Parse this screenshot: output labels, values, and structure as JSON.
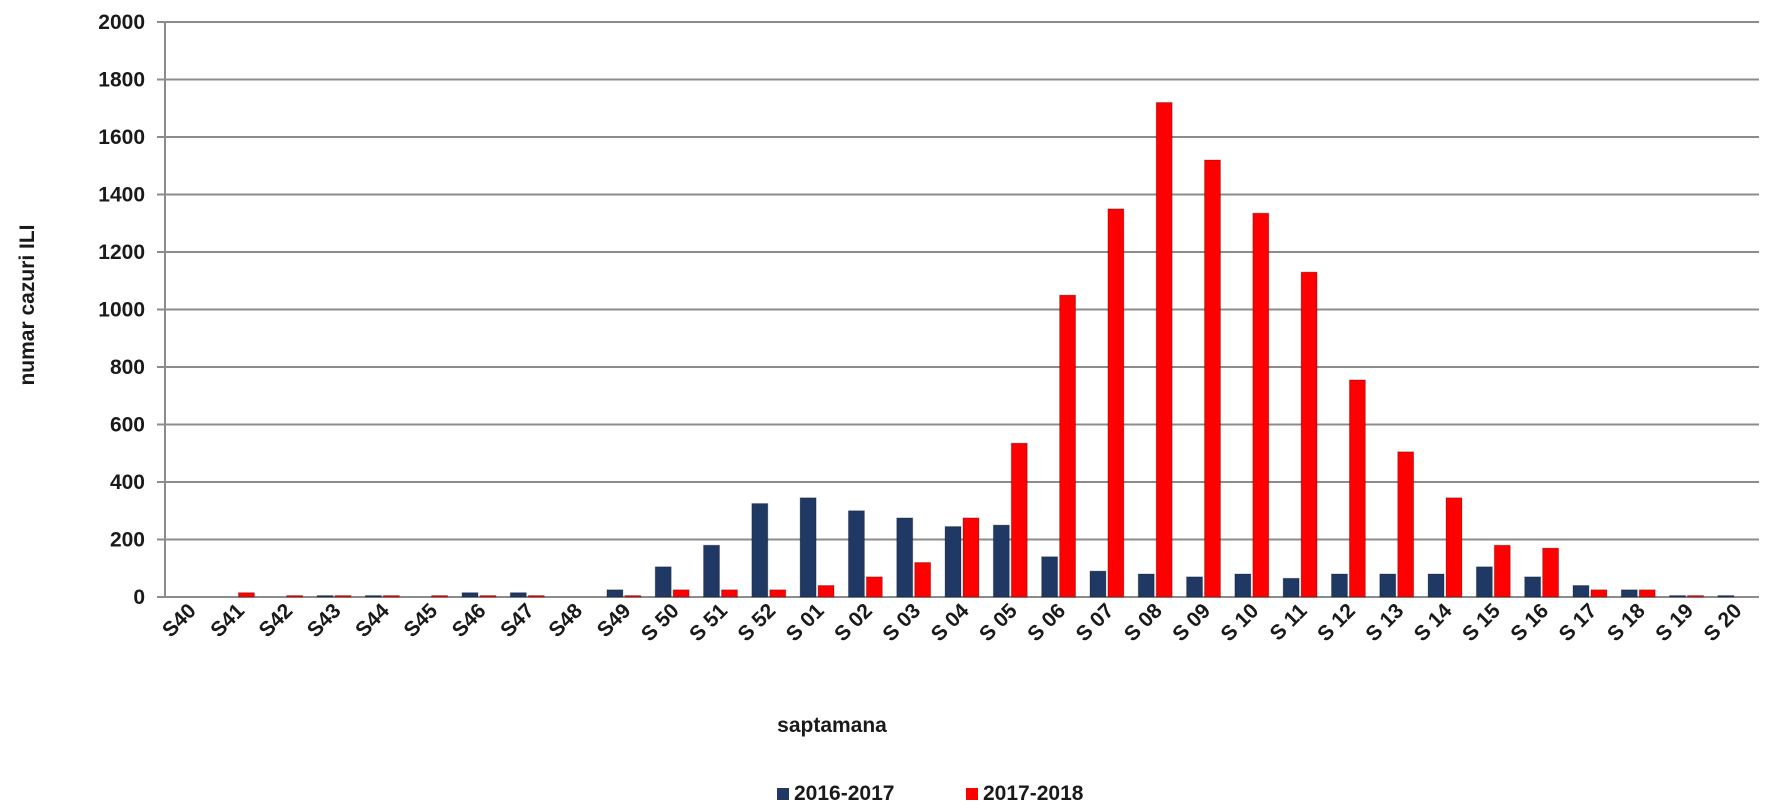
{
  "chart_data": {
    "type": "bar",
    "title": "",
    "xlabel": "saptamana",
    "ylabel": "numar cazuri ILI",
    "ylim": [
      0,
      2000
    ],
    "yticks": [
      0,
      200,
      400,
      600,
      800,
      1000,
      1200,
      1400,
      1600,
      1800,
      2000
    ],
    "grid": true,
    "legend_position": "bottom",
    "categories": [
      "S40",
      "S41",
      "S42",
      "S43",
      "S44",
      "S45",
      "S46",
      "S47",
      "S48",
      "S49",
      "S50",
      "S51",
      "S52",
      "S01",
      "S02",
      "S03",
      "S04",
      "S05",
      "S06",
      "S07",
      "S08",
      "S09",
      "S10",
      "S11",
      "S12",
      "S13",
      "S14",
      "S15",
      "S16",
      "S17",
      "S18",
      "S19",
      "S20"
    ],
    "category_labels": [
      "S40",
      "S41",
      "S42",
      "S43",
      "S44",
      "S45",
      "S46",
      "S47",
      "S48",
      "S49",
      "S 50",
      "S 51",
      "S 52",
      "S 01",
      "S 02",
      "S 03",
      "S 04",
      "S 05",
      "S 06",
      "S 07",
      "S 08",
      "S 09",
      "S 10",
      "S 11",
      "S 12",
      "S 13",
      "S 14",
      "S 15",
      "S 16",
      "S 17",
      "S 18",
      "S 19",
      "S 20"
    ],
    "series": [
      {
        "name": "2016-2017",
        "color": "#1f3864",
        "values": [
          0,
          0,
          0,
          5,
          5,
          0,
          15,
          15,
          0,
          25,
          105,
          180,
          325,
          345,
          300,
          275,
          245,
          250,
          140,
          90,
          80,
          70,
          80,
          65,
          80,
          80,
          80,
          105,
          70,
          40,
          25,
          5,
          5
        ]
      },
      {
        "name": "2017-2018",
        "color": "#ff0000",
        "values": [
          0,
          15,
          5,
          5,
          5,
          5,
          5,
          5,
          0,
          5,
          25,
          25,
          25,
          40,
          70,
          120,
          275,
          535,
          1050,
          1350,
          1720,
          1520,
          1335,
          1130,
          755,
          505,
          345,
          180,
          170,
          25,
          25,
          5,
          0
        ]
      }
    ]
  }
}
